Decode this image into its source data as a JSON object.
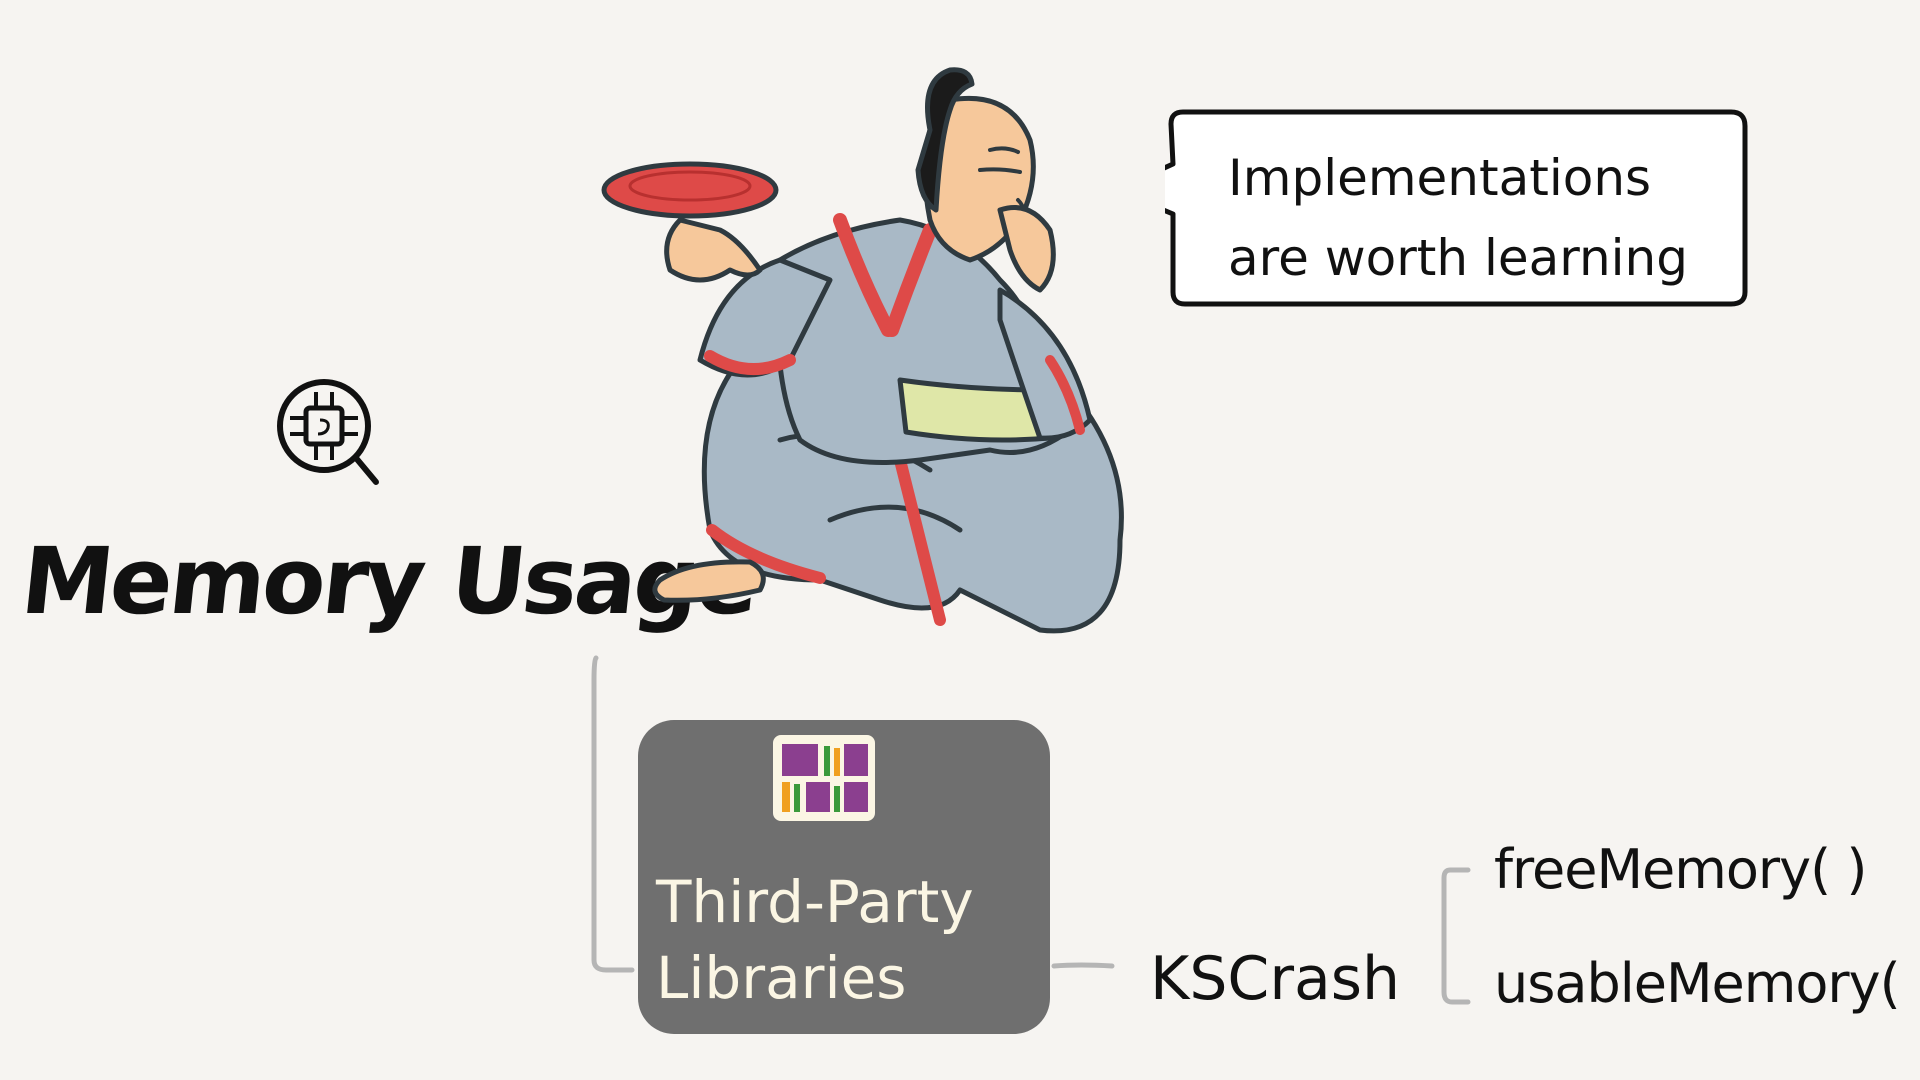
{
  "diagram": {
    "title": "Memory Usage",
    "speech_bubble": {
      "lines": [
        "Implementations",
        "are worth learning"
      ]
    },
    "library_node": {
      "label_lines": [
        "Third-Party",
        "Libraries"
      ],
      "icon": "bookshelf-icon"
    },
    "library_item": "KSCrash",
    "methods": [
      "freeMemory( )",
      "usableMemory( )"
    ],
    "memory_icon": "memory-chip-magnifier-icon",
    "illustration": "samurai-with-red-dish-illustration"
  },
  "colors": {
    "background": "#f6f4f1",
    "box_fill": "#6f6f6f",
    "connector": "#b5b5b5",
    "kimono": "#a9b9c6",
    "accent_red": "#de4a48",
    "sash": "#dfe7a8",
    "skin": "#f6c89b"
  }
}
